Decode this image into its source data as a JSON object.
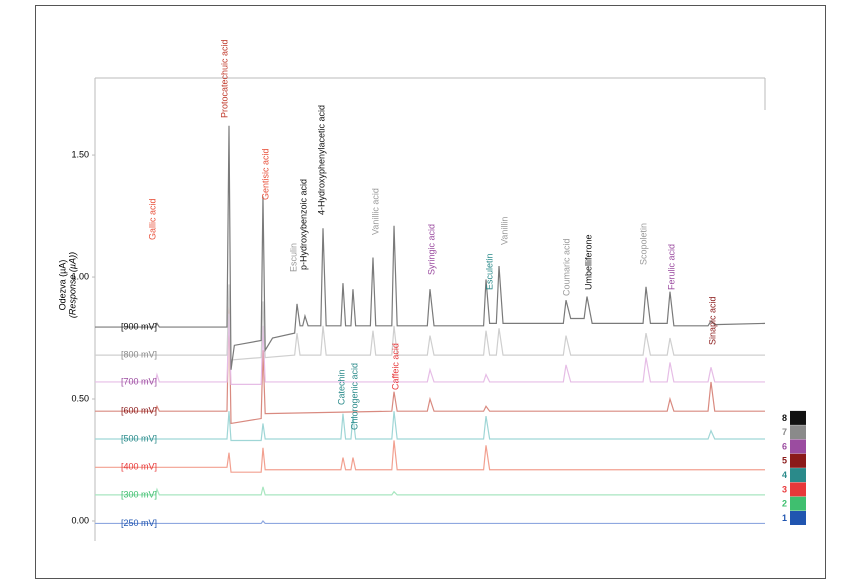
{
  "chart_data": {
    "type": "line",
    "ylabel": "Odezva (µA)",
    "ylabel_en": "(Response (µA))",
    "xlim": [
      0,
      100
    ],
    "ylim": [
      -0.08,
      1.82
    ],
    "yticks": [
      {
        "value": 0,
        "label": "0.00"
      },
      {
        "value": 0.5,
        "label": "0.50"
      },
      {
        "value": 1,
        "label": "1.00"
      },
      {
        "value": 1.5,
        "label": "1.50"
      }
    ],
    "series": [
      {
        "name": "[250 mV]",
        "key": "1",
        "color": "#8fa8e0",
        "legend_color": "#2055b0",
        "x": [
          0,
          24.8,
          25.07,
          25.4,
          100
        ],
        "values": [
          -0.01,
          -0.01,
          0.0,
          -0.01,
          -0.01
        ]
      },
      {
        "name": "[300 mV]",
        "key": "2",
        "color": "#a8e6c0",
        "legend_color": "#3fbf6f",
        "x": [
          0,
          9.0,
          9.25,
          9.6,
          24.8,
          25.07,
          25.4,
          44.3,
          44.63,
          45.1,
          100
        ],
        "values": [
          0.107,
          0.107,
          0.13,
          0.107,
          0.107,
          0.14,
          0.107,
          0.107,
          0.12,
          0.107,
          0.107
        ]
      },
      {
        "name": "[400 mV]",
        "key": "3",
        "color": "#f2a090",
        "legend_color": "#e8383a",
        "x": [
          0,
          19.7,
          20.0,
          20.3,
          24.8,
          25.07,
          25.4,
          36.7,
          37.01,
          37.4,
          38.2,
          38.5,
          38.9,
          44.3,
          44.63,
          45.1,
          58.0,
          58.36,
          58.9,
          100
        ],
        "values": [
          0.22,
          0.22,
          0.28,
          0.2,
          0.2,
          0.3,
          0.21,
          0.21,
          0.26,
          0.21,
          0.21,
          0.26,
          0.21,
          0.21,
          0.33,
          0.21,
          0.21,
          0.31,
          0.21,
          0.21
        ]
      },
      {
        "name": "[500 mV]",
        "key": "4",
        "color": "#9fd6d6",
        "legend_color": "#2a8a8a",
        "x": [
          0,
          19.7,
          20.0,
          20.3,
          24.8,
          25.07,
          25.4,
          36.7,
          37.01,
          37.4,
          38.2,
          38.5,
          38.9,
          44.3,
          44.63,
          45.1,
          58.0,
          58.36,
          58.9,
          91.5,
          91.94,
          92.5,
          100
        ],
        "values": [
          0.336,
          0.336,
          0.45,
          0.33,
          0.33,
          0.4,
          0.336,
          0.336,
          0.44,
          0.336,
          0.336,
          0.43,
          0.336,
          0.336,
          0.45,
          0.336,
          0.336,
          0.43,
          0.336,
          0.336,
          0.37,
          0.336,
          0.336
        ]
      },
      {
        "name": "[600 mV]",
        "key": "5",
        "color": "#d98a80",
        "legend_color": "#8b1a1a",
        "x": [
          0,
          9.0,
          9.25,
          9.6,
          19.7,
          20.0,
          20.3,
          24.8,
          25.07,
          25.4,
          44.3,
          44.63,
          45.1,
          49.6,
          50.0,
          50.6,
          58.0,
          58.36,
          58.9,
          85.4,
          85.82,
          86.4,
          91.5,
          91.94,
          92.5,
          100
        ],
        "values": [
          0.45,
          0.45,
          0.47,
          0.45,
          0.45,
          0.9,
          0.4,
          0.42,
          0.7,
          0.44,
          0.45,
          0.53,
          0.45,
          0.45,
          0.5,
          0.45,
          0.45,
          0.47,
          0.45,
          0.45,
          0.5,
          0.45,
          0.45,
          0.57,
          0.45,
          0.45
        ]
      },
      {
        "name": "[700 mV]",
        "key": "6",
        "color": "#e6bde6",
        "legend_color": "#9b4ca0",
        "x": [
          0,
          9.0,
          9.25,
          9.6,
          19.7,
          20.0,
          20.3,
          24.8,
          25.07,
          25.4,
          49.6,
          50.0,
          50.6,
          58.0,
          58.36,
          58.9,
          69.9,
          70.3,
          71.0,
          81.8,
          82.24,
          82.9,
          85.4,
          85.82,
          86.4,
          91.5,
          91.94,
          92.5,
          100
        ],
        "values": [
          0.57,
          0.57,
          0.6,
          0.57,
          0.57,
          0.85,
          0.56,
          0.56,
          0.8,
          0.57,
          0.57,
          0.62,
          0.57,
          0.57,
          0.6,
          0.57,
          0.57,
          0.64,
          0.57,
          0.57,
          0.67,
          0.57,
          0.57,
          0.65,
          0.57,
          0.57,
          0.63,
          0.57,
          0.57
        ]
      },
      {
        "name": "[800 mV]",
        "key": "7",
        "color": "#cfcfcf",
        "legend_color": "#8a8a8a",
        "x": [
          0,
          19.7,
          20.0,
          20.3,
          24.8,
          25.07,
          25.4,
          29.8,
          30.15,
          30.6,
          33.7,
          34.03,
          34.5,
          41.1,
          41.49,
          41.9,
          44.3,
          44.63,
          45.1,
          49.6,
          50.0,
          50.6,
          58.0,
          58.36,
          58.9,
          59.9,
          60.3,
          60.9,
          69.9,
          70.3,
          71.0,
          81.8,
          82.24,
          82.9,
          85.4,
          85.82,
          86.4,
          100
        ],
        "values": [
          0.68,
          0.68,
          0.97,
          0.66,
          0.67,
          0.9,
          0.67,
          0.68,
          0.77,
          0.68,
          0.68,
          0.8,
          0.68,
          0.68,
          0.78,
          0.68,
          0.68,
          0.8,
          0.68,
          0.68,
          0.76,
          0.68,
          0.68,
          0.78,
          0.68,
          0.68,
          0.79,
          0.68,
          0.68,
          0.76,
          0.68,
          0.68,
          0.77,
          0.68,
          0.68,
          0.75,
          0.68,
          0.68
        ]
      },
      {
        "name": "[900 mV]",
        "key": "8",
        "color": "#7a7a7a",
        "legend_color": "#111111",
        "x": [
          0,
          9.0,
          9.25,
          9.6,
          19.7,
          20.0,
          20.3,
          20.8,
          24.8,
          25.07,
          25.4,
          26.5,
          29.8,
          30.15,
          30.6,
          31.0,
          31.34,
          31.8,
          33.7,
          34.03,
          34.5,
          36.7,
          37.01,
          37.4,
          38.2,
          38.5,
          38.9,
          41.1,
          41.49,
          41.9,
          44.3,
          44.63,
          45.1,
          49.6,
          50.0,
          50.6,
          58.0,
          58.36,
          58.9,
          59.9,
          60.3,
          60.9,
          69.9,
          70.3,
          71.0,
          73.0,
          73.43,
          74.2,
          81.8,
          82.24,
          82.9,
          85.4,
          85.82,
          86.4,
          91.5,
          91.94,
          92.5,
          100
        ],
        "values": [
          0.795,
          0.795,
          0.81,
          0.795,
          0.795,
          1.62,
          0.62,
          0.72,
          0.74,
          1.33,
          0.7,
          0.75,
          0.77,
          0.89,
          0.8,
          0.8,
          0.84,
          0.8,
          0.8,
          1.2,
          0.8,
          0.8,
          0.975,
          0.8,
          0.8,
          0.95,
          0.8,
          0.8,
          1.08,
          0.8,
          0.8,
          1.21,
          0.8,
          0.8,
          0.95,
          0.8,
          0.8,
          0.99,
          0.81,
          0.81,
          1.045,
          0.81,
          0.81,
          0.905,
          0.83,
          0.83,
          0.92,
          0.81,
          0.81,
          0.96,
          0.81,
          0.81,
          0.94,
          0.8,
          0.8,
          0.82,
          0.805,
          0.81
        ]
      }
    ],
    "annotations": [
      {
        "text": "Gallic acid",
        "color": "#e8503a"
      },
      {
        "text": "Protocatechuic acid",
        "color": "#c0392b"
      },
      {
        "text": "Gentisic acid",
        "color": "#e8503a"
      },
      {
        "text": "Esculin",
        "color": "#9a9a9a"
      },
      {
        "text": "p-Hydroxybenzoic acid",
        "color": "#111111"
      },
      {
        "text": "4-Hydroxyphenylacetic acid",
        "color": "#111111"
      },
      {
        "text": "Vanillic acid",
        "color": "#9a9a9a"
      },
      {
        "text": "Catechin",
        "color": "#2a8a8a"
      },
      {
        "text": "Chlorogenic acid",
        "color": "#2a8a8a"
      },
      {
        "text": "Caffeic acid",
        "color": "#e8383a"
      },
      {
        "text": "Syringic acid",
        "color": "#9b4ca0"
      },
      {
        "text": "Esculetin",
        "color": "#2a8a8a"
      },
      {
        "text": "Vanillin",
        "color": "#9a9a9a"
      },
      {
        "text": "Coumaric acid",
        "color": "#9a9a9a"
      },
      {
        "text": "Umbelliferone",
        "color": "#111111"
      },
      {
        "text": "Scopoletin",
        "color": "#9a9a9a"
      },
      {
        "text": "Ferulic acid",
        "color": "#9b4ca0"
      },
      {
        "text": "Sinapic acid",
        "color": "#8b1a1a"
      }
    ]
  }
}
